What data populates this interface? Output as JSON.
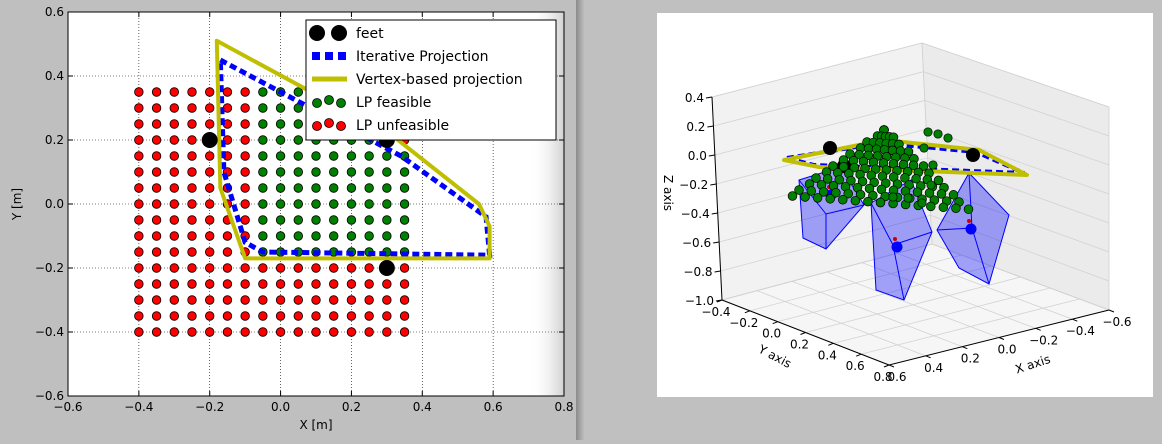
{
  "chart_data": [
    {
      "type": "scatter",
      "title": "",
      "xlabel": "X [m]",
      "ylabel": "Y [m]",
      "xlim": [
        -0.6,
        0.8
      ],
      "ylim": [
        -0.6,
        0.6
      ],
      "xticks": [
        "−0.6",
        "−0.4",
        "−0.2",
        "0.0",
        "0.2",
        "0.4",
        "0.6",
        "0.8"
      ],
      "yticks": [
        "−0.6",
        "−0.4",
        "−0.2",
        "0.0",
        "0.2",
        "0.4",
        "0.6"
      ],
      "grid": true,
      "legend_position": "top-right",
      "series": [
        {
          "name": "feet",
          "kind": "marker",
          "color": "#000000",
          "points": [
            [
              -0.2,
              0.2
            ],
            [
              0.3,
              0.2
            ],
            [
              0.3,
              -0.2
            ]
          ]
        },
        {
          "name": "Iterative Projection",
          "kind": "dashed-polygon",
          "color": "#0000ff",
          "points": [
            [
              -0.17,
              0.45
            ],
            [
              0.34,
              0.15
            ],
            [
              0.58,
              -0.04
            ],
            [
              0.59,
              -0.16
            ],
            [
              -0.05,
              -0.15
            ],
            [
              -0.1,
              -0.12
            ],
            [
              -0.16,
              0.1
            ]
          ]
        },
        {
          "name": "Vertex-based projection",
          "kind": "polygon",
          "color": "#bfbf00",
          "points": [
            [
              -0.18,
              0.51
            ],
            [
              0.32,
              0.21
            ],
            [
              0.56,
              0.0
            ],
            [
              0.59,
              -0.07
            ],
            [
              0.59,
              -0.17
            ],
            [
              -0.1,
              -0.17
            ],
            [
              -0.17,
              0.05
            ]
          ]
        },
        {
          "name": "LP feasible",
          "kind": "grid-points",
          "color": "#008000"
        },
        {
          "name": "LP unfeasible",
          "kind": "grid-points",
          "color": "#ff0000"
        }
      ],
      "grid_points": {
        "x_start": -0.4,
        "x_end": 0.35,
        "y_start": -0.4,
        "y_end": 0.35,
        "step": 0.05
      }
    },
    {
      "type": "scatter",
      "title": "",
      "xlabel": "X axis",
      "ylabel": "Y axis",
      "zlabel": "Z axis",
      "xticks": [
        "0.6",
        "0.4",
        "0.2",
        "0.0",
        "−0.2",
        "−0.4",
        "−0.6"
      ],
      "yticks": [
        "−0.4",
        "−0.2",
        "0.0",
        "0.2",
        "0.4",
        "0.6",
        "0.8"
      ],
      "zticks": [
        "0.4",
        "0.2",
        "0.0",
        "−0.2",
        "−0.4",
        "−0.6",
        "−0.8",
        "−1.0"
      ],
      "colors": {
        "feasible": "#008000",
        "polygon": "#bfbf00",
        "projection": "#0000ff",
        "box": "#0000ff",
        "foot": "#000000"
      }
    }
  ]
}
